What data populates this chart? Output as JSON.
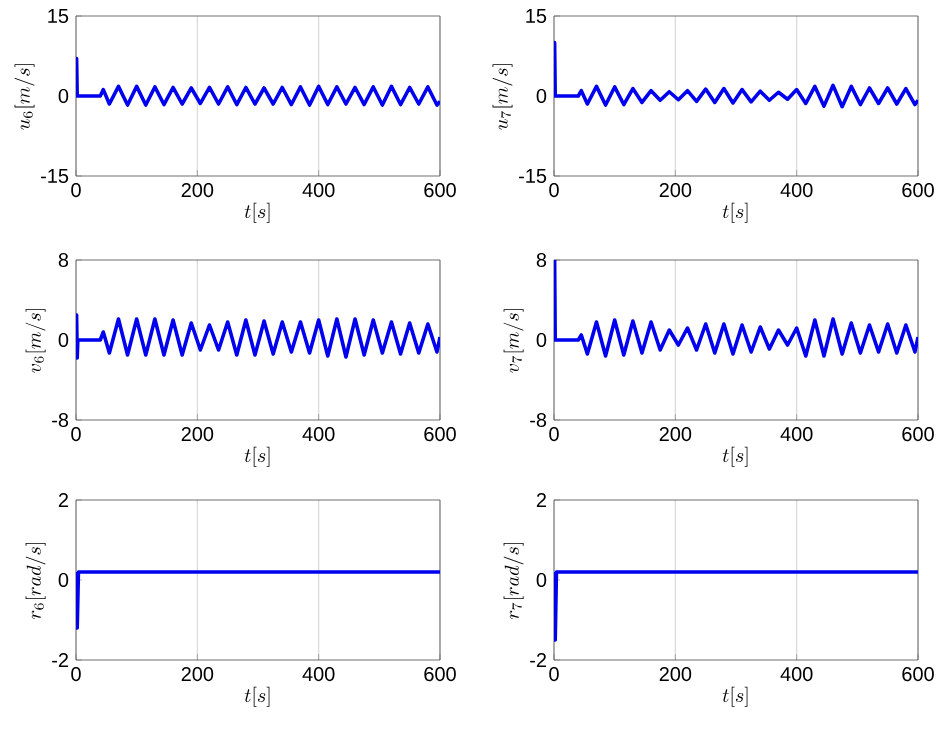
{
  "chart_data": [
    {
      "type": "line",
      "xlabel": "t[s]",
      "ylabel": "u_6[m/s]",
      "xlim": [
        0,
        600
      ],
      "ylim": [
        -15,
        15
      ],
      "xticks": [
        0,
        200,
        400,
        600
      ],
      "yticks": [
        -15,
        0,
        15
      ],
      "grid": "x",
      "x": [
        0,
        1,
        2,
        3,
        40,
        45,
        55,
        70,
        85,
        100,
        115,
        130,
        145,
        160,
        175,
        190,
        205,
        220,
        235,
        250,
        265,
        280,
        295,
        310,
        325,
        340,
        355,
        370,
        385,
        400,
        415,
        430,
        445,
        460,
        475,
        490,
        505,
        520,
        535,
        550,
        565,
        580,
        595,
        600
      ],
      "series": [
        {
          "color": "#0000ee",
          "values": [
            0,
            7,
            0,
            0,
            0,
            1.2,
            -1.5,
            1.8,
            -1.7,
            1.8,
            -1.7,
            1.7,
            -1.6,
            1.6,
            -1.5,
            1.5,
            -1.4,
            1.6,
            -1.5,
            1.7,
            -1.6,
            1.6,
            -1.5,
            1.5,
            -1.5,
            1.6,
            -1.6,
            1.7,
            -1.7,
            1.8,
            -1.6,
            1.7,
            -1.5,
            1.6,
            -1.6,
            1.7,
            -1.7,
            1.8,
            -1.6,
            1.6,
            -1.5,
            1.7,
            -1.7,
            -1.0
          ]
        }
      ]
    },
    {
      "type": "line",
      "xlabel": "t[s]",
      "ylabel": "u_7[m/s]",
      "xlim": [
        0,
        600
      ],
      "ylim": [
        -15,
        15
      ],
      "xticks": [
        0,
        200,
        400,
        600
      ],
      "yticks": [
        -15,
        0,
        15
      ],
      "grid": "x",
      "x": [
        0,
        1,
        2,
        3,
        40,
        45,
        55,
        70,
        85,
        100,
        115,
        130,
        145,
        160,
        175,
        190,
        205,
        220,
        235,
        250,
        265,
        280,
        295,
        310,
        325,
        340,
        355,
        370,
        385,
        400,
        415,
        430,
        445,
        460,
        475,
        490,
        505,
        520,
        535,
        550,
        565,
        580,
        595,
        600
      ],
      "series": [
        {
          "color": "#0000ee",
          "values": [
            0,
            10,
            0,
            0,
            0,
            1.0,
            -1.5,
            1.8,
            -1.7,
            1.7,
            -1.6,
            1.4,
            -1.2,
            1.0,
            -0.8,
            0.8,
            -0.7,
            1.0,
            -1.0,
            1.3,
            -1.2,
            1.4,
            -1.3,
            1.2,
            -1.1,
            0.9,
            -0.8,
            0.7,
            -0.6,
            1.2,
            -1.4,
            1.8,
            -1.9,
            2.0,
            -2.0,
            1.8,
            -1.6,
            1.5,
            -1.4,
            1.5,
            -1.5,
            1.4,
            -1.6,
            -0.8
          ]
        }
      ]
    },
    {
      "type": "line",
      "xlabel": "t[s]",
      "ylabel": "v_6[m/s]",
      "xlim": [
        0,
        600
      ],
      "ylim": [
        -8,
        8
      ],
      "xticks": [
        0,
        200,
        400,
        600
      ],
      "yticks": [
        -8,
        0,
        8
      ],
      "grid": "x",
      "x": [
        0,
        1,
        2,
        3,
        40,
        45,
        55,
        70,
        85,
        100,
        115,
        130,
        145,
        160,
        175,
        190,
        205,
        220,
        235,
        250,
        265,
        280,
        295,
        310,
        325,
        340,
        355,
        370,
        385,
        400,
        415,
        430,
        445,
        460,
        475,
        490,
        505,
        520,
        535,
        550,
        565,
        580,
        595,
        600
      ],
      "series": [
        {
          "color": "#0000ee",
          "values": [
            0,
            2.5,
            -1.8,
            0,
            0,
            0.8,
            -1.3,
            2.1,
            -1.5,
            2.1,
            -1.5,
            2.1,
            -1.5,
            2.0,
            -1.5,
            1.7,
            -1.0,
            1.5,
            -1.0,
            1.8,
            -1.5,
            2.0,
            -1.5,
            1.9,
            -1.4,
            1.8,
            -1.2,
            1.8,
            -1.3,
            2.0,
            -1.6,
            2.1,
            -1.7,
            2.1,
            -1.5,
            2.0,
            -1.3,
            1.8,
            -1.4,
            1.7,
            -1.3,
            1.6,
            -1.2,
            0.3
          ]
        }
      ]
    },
    {
      "type": "line",
      "xlabel": "t[s]",
      "ylabel": "v_7[m/s]",
      "xlim": [
        0,
        600
      ],
      "ylim": [
        -8,
        8
      ],
      "xticks": [
        0,
        200,
        400,
        600
      ],
      "yticks": [
        -8,
        0,
        8
      ],
      "grid": "x",
      "x": [
        0,
        1,
        2,
        3,
        40,
        45,
        55,
        70,
        85,
        100,
        115,
        130,
        145,
        160,
        175,
        190,
        205,
        220,
        235,
        250,
        265,
        280,
        295,
        310,
        325,
        340,
        355,
        370,
        385,
        400,
        415,
        430,
        445,
        460,
        475,
        490,
        505,
        520,
        535,
        550,
        565,
        580,
        595,
        600
      ],
      "series": [
        {
          "color": "#0000ee",
          "values": [
            0,
            8,
            0,
            0,
            0,
            0.5,
            -1.4,
            1.8,
            -1.6,
            2.0,
            -1.5,
            1.9,
            -1.3,
            1.8,
            -1.0,
            1.0,
            -0.5,
            1.2,
            -1.0,
            1.6,
            -1.3,
            1.6,
            -1.4,
            1.5,
            -1.2,
            1.3,
            -0.9,
            1.0,
            -0.5,
            1.2,
            -1.6,
            2.0,
            -1.6,
            2.1,
            -1.4,
            1.7,
            -1.3,
            1.5,
            -1.2,
            1.6,
            -1.3,
            1.5,
            -1.2,
            0.3
          ]
        }
      ]
    },
    {
      "type": "line",
      "xlabel": "t[s]",
      "ylabel": "r_6[rad/s]",
      "xlim": [
        0,
        600
      ],
      "ylim": [
        -2,
        2
      ],
      "xticks": [
        0,
        200,
        400,
        600
      ],
      "yticks": [
        -2,
        0,
        2
      ],
      "grid": "x",
      "x": [
        0,
        2,
        4,
        600
      ],
      "series": [
        {
          "color": "#0000ee",
          "values": [
            0.2,
            -1.2,
            0.2,
            0.2
          ]
        }
      ]
    },
    {
      "type": "line",
      "xlabel": "t[s]",
      "ylabel": "r_7[rad/s]",
      "xlim": [
        0,
        600
      ],
      "ylim": [
        -2,
        2
      ],
      "xticks": [
        0,
        200,
        400,
        600
      ],
      "yticks": [
        -2,
        0,
        2
      ],
      "grid": "x",
      "x": [
        0,
        2,
        4,
        600
      ],
      "series": [
        {
          "color": "#0000ee",
          "values": [
            0.2,
            -1.5,
            0.2,
            0.2
          ]
        }
      ]
    }
  ]
}
